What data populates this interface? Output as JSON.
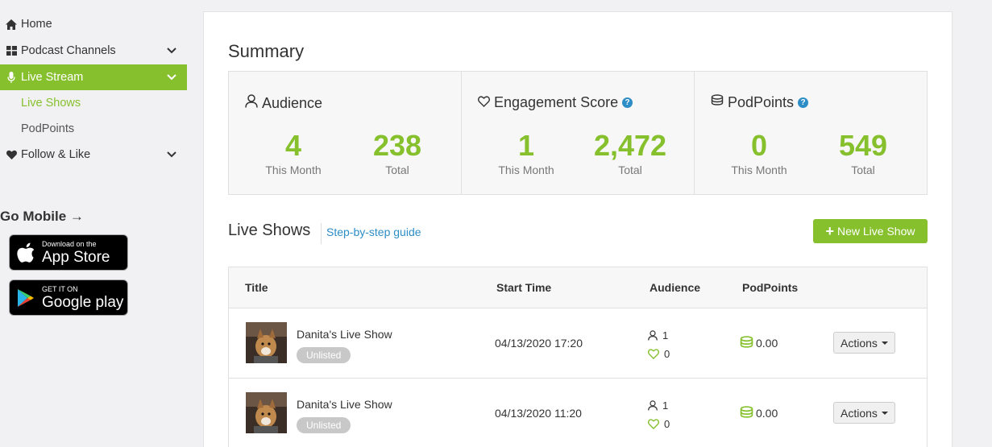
{
  "sidebar": {
    "items": [
      {
        "label": "Home"
      },
      {
        "label": "Podcast Channels"
      },
      {
        "label": "Live Stream"
      },
      {
        "label": "Follow & Like"
      }
    ],
    "sub_items": [
      {
        "label": "Live Shows"
      },
      {
        "label": "PodPoints"
      }
    ],
    "go_mobile": "Go Mobile →",
    "app_store": {
      "small": "Download on the",
      "big": "App Store"
    },
    "google_play": {
      "small": "GET IT ON",
      "big": "Google play"
    }
  },
  "summary": {
    "title": "Summary",
    "audience": {
      "label": "Audience",
      "month_value": "4",
      "month_caption": "This Month",
      "total_value": "238",
      "total_caption": "Total"
    },
    "engagement": {
      "label": "Engagement Score",
      "month_value": "1",
      "month_caption": "This Month",
      "total_value": "2,472",
      "total_caption": "Total"
    },
    "podpoints": {
      "label": "PodPoints",
      "month_value": "0",
      "month_caption": "This Month",
      "total_value": "549",
      "total_caption": "Total"
    }
  },
  "live_shows": {
    "title": "Live Shows",
    "guide_link": "Step-by-step guide",
    "new_button": "New Live Show",
    "columns": [
      "Title",
      "Start Time",
      "Audience",
      "PodPoints"
    ],
    "rows": [
      {
        "title": "Danita's Live Show",
        "badge": "Unlisted",
        "start": "04/13/2020 17:20",
        "audience": "1",
        "likes": "0",
        "podpoints": "0.00",
        "actions": "Actions"
      },
      {
        "title": "Danita's Live Show",
        "badge": "Unlisted",
        "start": "04/13/2020 11:20",
        "audience": "1",
        "likes": "0",
        "podpoints": "0.00",
        "actions": "Actions"
      }
    ]
  },
  "colors": {
    "accent": "#86c02d",
    "link": "#2d8dc6",
    "background": "#f1f1f3"
  }
}
